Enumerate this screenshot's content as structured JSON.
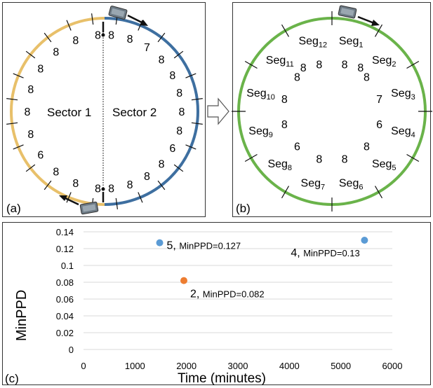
{
  "panel_a": {
    "label": "(a)",
    "sector1_label": "Sector 1",
    "sector2_label": "Sector 2",
    "sector1_color": "#e8c06a",
    "sector2_color": "#3e6fa0",
    "sector1_values": [
      "8",
      "8",
      "8",
      "8",
      "8",
      "8",
      "8",
      "6",
      "8",
      "8",
      "8"
    ],
    "sector2_values": [
      "8",
      "8",
      "7",
      "8",
      "8",
      "8",
      "8",
      "8",
      "6",
      "8",
      "8",
      "8",
      "8"
    ]
  },
  "panel_b": {
    "label": "(b)",
    "ring_color": "#6ab34a",
    "segments": [
      {
        "name": "Seg",
        "sub": "1",
        "value": "8"
      },
      {
        "name": "Seg",
        "sub": "2",
        "value": "8"
      },
      {
        "name": "Seg",
        "sub": "3",
        "value": "7"
      },
      {
        "name": "Seg",
        "sub": "4",
        "value": "6"
      },
      {
        "name": "Seg",
        "sub": "5",
        "value": "8"
      },
      {
        "name": "Seg",
        "sub": "6",
        "value": "8"
      },
      {
        "name": "Seg",
        "sub": "7",
        "value": "8"
      },
      {
        "name": "Seg",
        "sub": "8",
        "value": "6"
      },
      {
        "name": "Seg",
        "sub": "9",
        "value": "8"
      },
      {
        "name": "Seg",
        "sub": "10",
        "value": "8"
      },
      {
        "name": "Seg",
        "sub": "11",
        "value": "8"
      },
      {
        "name": "Seg",
        "sub": "12",
        "value": "8"
      }
    ],
    "inner_extra": [
      "8",
      "8"
    ]
  },
  "panel_c": {
    "label": "(c)"
  },
  "chart_data": {
    "type": "scatter",
    "xlabel": "Time (minutes)",
    "ylabel": "MinPPD",
    "xlim": [
      0,
      6000
    ],
    "ylim": [
      0,
      0.14
    ],
    "x_ticks": [
      "0",
      "1000",
      "2000",
      "3000",
      "4000",
      "5000",
      "6000"
    ],
    "y_ticks": [
      "0",
      "0.02",
      "0.04",
      "0.06",
      "0.08",
      "0.1",
      "0.12",
      "0.14"
    ],
    "grid": "horizontal",
    "points": [
      {
        "x": 1480,
        "y": 0.127,
        "color": "#5b9bd5",
        "label_num": "5,",
        "label_text": "MinPPD=0.127"
      },
      {
        "x": 1950,
        "y": 0.082,
        "color": "#ed7d31",
        "label_num": "2,",
        "label_text": "MinPPD=0.082"
      },
      {
        "x": 5460,
        "y": 0.13,
        "color": "#5b9bd5",
        "label_num": "4,",
        "label_text": "MinPPD=0.13"
      }
    ]
  }
}
